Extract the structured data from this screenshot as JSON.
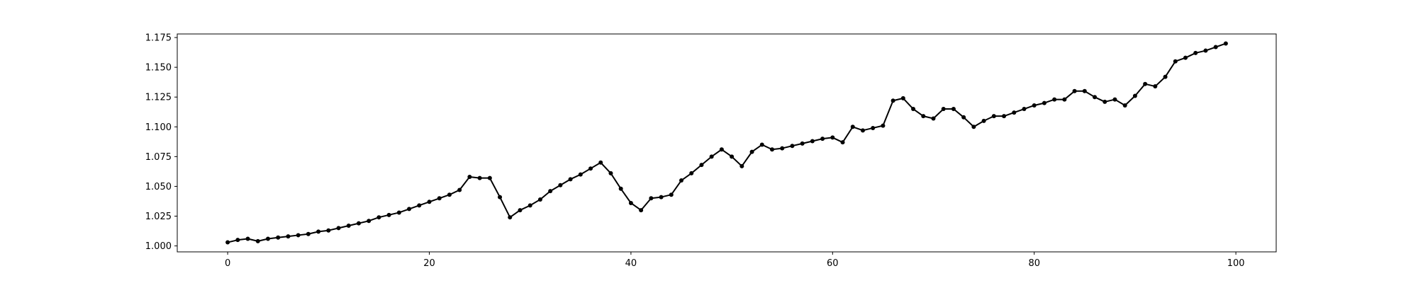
{
  "chart_data": {
    "type": "line",
    "title": "",
    "xlabel": "",
    "ylabel": "",
    "xlim": [
      -5,
      104
    ],
    "ylim": [
      0.995,
      1.178
    ],
    "xticks": [
      0,
      20,
      40,
      60,
      80,
      100
    ],
    "yticks": [
      1.0,
      1.025,
      1.05,
      1.075,
      1.1,
      1.125,
      1.15,
      1.175
    ],
    "xtick_labels": [
      "0",
      "20",
      "40",
      "60",
      "80",
      "100"
    ],
    "ytick_labels": [
      "1.000",
      "1.025",
      "1.050",
      "1.075",
      "1.100",
      "1.125",
      "1.150",
      "1.175"
    ],
    "grid": false,
    "line_color": "#000000",
    "marker": "circle",
    "series": [
      {
        "x": [
          0,
          1,
          2,
          3,
          4,
          5,
          6,
          7,
          8,
          9,
          10,
          11,
          12,
          13,
          14,
          15,
          16,
          17,
          18,
          19,
          20,
          21,
          22,
          23,
          24,
          25,
          26,
          27,
          28,
          29,
          30,
          31,
          32,
          33,
          34,
          35,
          36,
          37,
          38,
          39,
          40,
          41,
          42,
          43,
          44,
          45,
          46,
          47,
          48,
          49,
          50,
          51,
          52,
          53,
          54,
          55,
          56,
          57,
          58,
          59,
          60,
          61,
          62,
          63,
          64,
          65,
          66,
          67,
          68,
          69,
          70,
          71,
          72,
          73,
          74,
          75,
          76,
          77,
          78,
          79,
          80,
          81,
          82,
          83,
          84,
          85,
          86,
          87,
          88,
          89,
          90,
          91,
          92,
          93,
          94,
          95,
          96,
          97,
          98,
          99
        ],
        "values": [
          1.003,
          1.005,
          1.006,
          1.004,
          1.006,
          1.007,
          1.008,
          1.009,
          1.01,
          1.012,
          1.013,
          1.015,
          1.017,
          1.019,
          1.021,
          1.024,
          1.026,
          1.028,
          1.031,
          1.034,
          1.037,
          1.04,
          1.043,
          1.047,
          1.058,
          1.057,
          1.057,
          1.041,
          1.024,
          1.03,
          1.034,
          1.039,
          1.046,
          1.051,
          1.056,
          1.06,
          1.065,
          1.07,
          1.061,
          1.048,
          1.036,
          1.03,
          1.04,
          1.041,
          1.043,
          1.055,
          1.061,
          1.068,
          1.075,
          1.081,
          1.075,
          1.067,
          1.079,
          1.085,
          1.081,
          1.082,
          1.084,
          1.086,
          1.088,
          1.09,
          1.091,
          1.087,
          1.1,
          1.097,
          1.099,
          1.101,
          1.122,
          1.124,
          1.115,
          1.109,
          1.107,
          1.115,
          1.115,
          1.108,
          1.1,
          1.105,
          1.109,
          1.109,
          1.112,
          1.115,
          1.118,
          1.12,
          1.123,
          1.123,
          1.13,
          1.13,
          1.125,
          1.121,
          1.123,
          1.118,
          1.126,
          1.136,
          1.134,
          1.142,
          1.155,
          1.158,
          1.162,
          1.164,
          1.167,
          1.17
        ]
      }
    ]
  }
}
